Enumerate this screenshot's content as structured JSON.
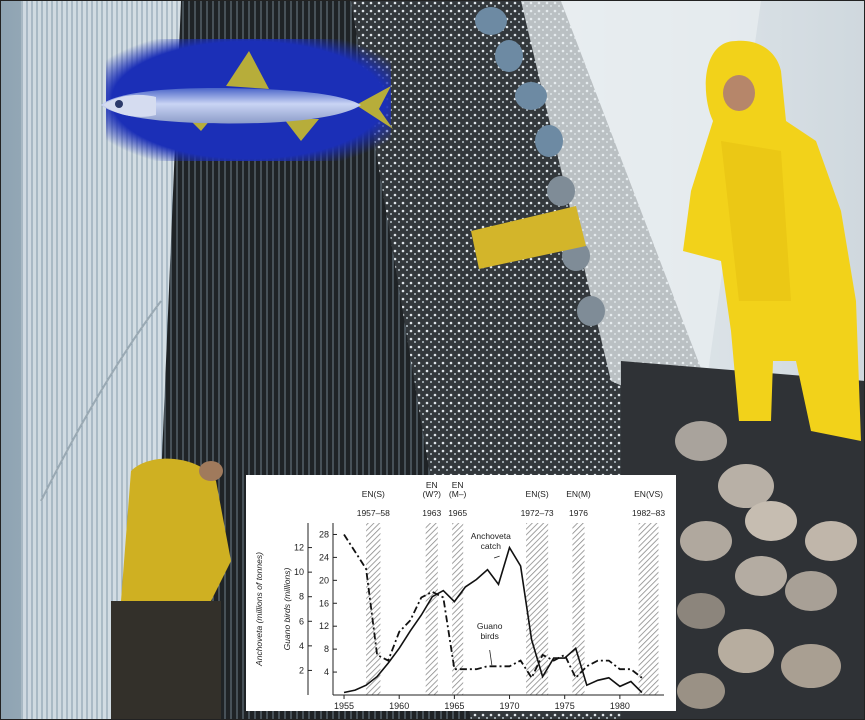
{
  "chart_data": {
    "type": "line",
    "x_label": "",
    "ylabel_left_outer": "Anchoveta (millions of tonnes)",
    "ylabel_left_inner": "Guano birds (millions)",
    "xlim": [
      1954,
      1984
    ],
    "x_ticks": [
      1955,
      1960,
      1965,
      1970,
      1975,
      1980
    ],
    "anchoveta_axis": {
      "ylim": [
        0,
        14
      ],
      "ticks": [
        2,
        4,
        6,
        8,
        10,
        12
      ]
    },
    "guano_axis": {
      "ylim": [
        0,
        30
      ],
      "ticks": [
        4,
        8,
        12,
        16,
        20,
        24,
        28
      ]
    },
    "series": [
      {
        "name": "Anchoveta catch",
        "axis": "anchoveta",
        "style": "solid",
        "x": [
          1955,
          1956,
          1957,
          1958,
          1959,
          1960,
          1961,
          1962,
          1963,
          1964,
          1965,
          1966,
          1967,
          1968,
          1969,
          1970,
          1971,
          1972,
          1973,
          1974,
          1975,
          1976,
          1977,
          1978,
          1979,
          1980,
          1981,
          1982
        ],
        "values": [
          0.2,
          0.4,
          0.8,
          1.5,
          2.6,
          3.8,
          5.2,
          6.5,
          8.0,
          8.5,
          7.6,
          8.8,
          9.4,
          10.2,
          9.0,
          12.0,
          10.5,
          4.5,
          1.5,
          3.0,
          3.0,
          3.8,
          0.8,
          1.2,
          1.4,
          0.7,
          1.1,
          0.2
        ]
      },
      {
        "name": "Guano birds",
        "axis": "guano",
        "style": "dashed",
        "x": [
          1955,
          1956,
          1957,
          1958,
          1959,
          1960,
          1961,
          1962,
          1963,
          1964,
          1965,
          1966,
          1967,
          1968,
          1969,
          1970,
          1971,
          1972,
          1973,
          1974,
          1975,
          1976,
          1977,
          1978,
          1979,
          1980,
          1981,
          1982
        ],
        "values": [
          28,
          25,
          22,
          7,
          6,
          11,
          13,
          17,
          18,
          17,
          4.5,
          4.5,
          4.5,
          5,
          5,
          5,
          6,
          3,
          7,
          6,
          7,
          3,
          5,
          6,
          6,
          4.5,
          4.5,
          3
        ]
      }
    ],
    "events": [
      {
        "label": "EN(S)",
        "years": "1957–58",
        "start": 1957,
        "end": 1958.3
      },
      {
        "label": "EN\n(W?)",
        "years": "1963",
        "start": 1962.4,
        "end": 1963.5
      },
      {
        "label": "EN\n(M–)",
        "years": "1965",
        "start": 1964.8,
        "end": 1965.8
      },
      {
        "label": "EN(S)",
        "years": "1972–73",
        "start": 1971.5,
        "end": 1973.5
      },
      {
        "label": "EN(M)",
        "years": "1976",
        "start": 1975.7,
        "end": 1976.8
      },
      {
        "label": "EN(VS)",
        "years": "1982–83",
        "start": 1981.7,
        "end": 1983.5
      }
    ],
    "annotations": [
      {
        "text": "Anchoveta catch",
        "series": "Anchoveta catch"
      },
      {
        "text": "Guano birds",
        "series": "Guano birds"
      }
    ],
    "grid": false,
    "legend": "none"
  },
  "colors": {
    "sea_foam": "#c9d3dc",
    "net_dark": "#2b2b2b",
    "raincoat": "#f2d21a",
    "fish_bg": "#1c2fb8",
    "fish_body": "#7e96d6",
    "float": "#7f8c97"
  }
}
